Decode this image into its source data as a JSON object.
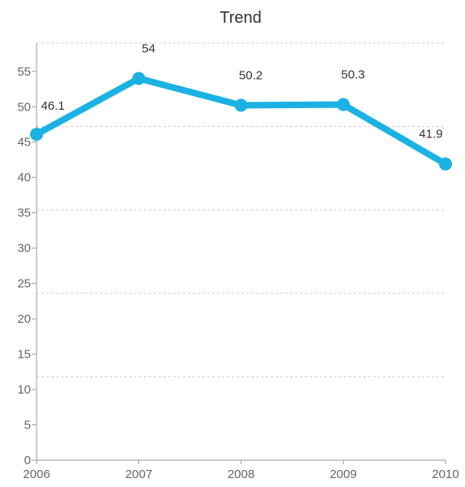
{
  "chart_data": {
    "type": "line",
    "title": "Trend",
    "xlabel": "",
    "ylabel": "",
    "categories": [
      "2006",
      "2007",
      "2008",
      "2009",
      "2010"
    ],
    "series": [
      {
        "values": [
          46.1,
          54,
          50.2,
          50.3,
          41.9
        ],
        "labels": [
          "46.1",
          "54",
          "50.2",
          "50.3",
          "41.9"
        ],
        "color": "#1BB2E3"
      }
    ],
    "ylim": [
      0,
      59
    ],
    "y_ticks": [
      0,
      5,
      10,
      15,
      20,
      25,
      30,
      35,
      40,
      45,
      50,
      55
    ],
    "y_tick_labels": [
      "0",
      "5",
      "10",
      "15",
      "20",
      "25",
      "30",
      "35",
      "40",
      "45",
      "50",
      "55"
    ],
    "gridlines": [
      11.8,
      23.6,
      35.4,
      47.2,
      59
    ],
    "grid": true,
    "legend": "none"
  }
}
